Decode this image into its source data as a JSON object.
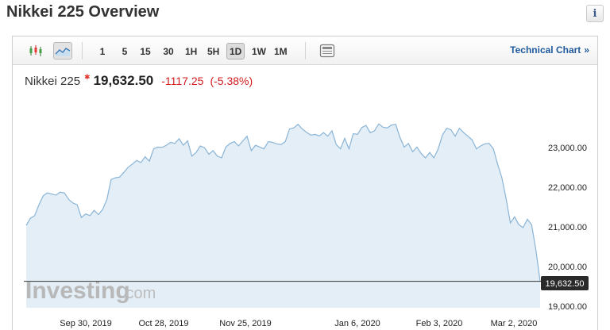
{
  "page": {
    "title": "Nikkei 225 Overview",
    "info_icon": "info-icon"
  },
  "toolbar": {
    "icons": [
      "candlestick-icon",
      "area-chart-icon"
    ],
    "timeframes": [
      "1",
      "5",
      "15",
      "30",
      "1H",
      "5H",
      "1D",
      "1W",
      "1M"
    ],
    "active_timeframe": "1D",
    "layout_icon": "layout-icon",
    "technical_chart_label": "Technical Chart",
    "technical_chart_chevron": "»"
  },
  "quote": {
    "name": "Nikkei 225",
    "price": "19,632.50",
    "change": "-1117.25",
    "change_pct": "(-5.38%)",
    "down_color": "#d01c1f"
  },
  "watermark": {
    "text": "Investing",
    "suffix": ".com"
  },
  "colors": {
    "line": "#8ab4d6",
    "fill": "#e3eef6",
    "current_line": "#333333",
    "price_tag_bg": "#2a2a2a"
  },
  "chart_data": {
    "type": "area",
    "x_labels": [
      "Sep 30, 2019",
      "Oct 28, 2019",
      "Nov 25, 2019",
      "Jan 6, 2020",
      "Feb 3, 2020",
      "Mar 2, 2020"
    ],
    "y_ticks": [
      "23,000.00",
      "22,000.00",
      "21,000.00",
      "20,000.00",
      "19,000.00"
    ],
    "ylim": [
      18900,
      24500
    ],
    "current_value_label": "19,632.50",
    "current_value": 19632.5,
    "grid": false,
    "values": [
      21180,
      21380,
      21450,
      21750,
      22000,
      22080,
      22050,
      22020,
      22100,
      22080,
      21900,
      21800,
      21750,
      21400,
      21500,
      21450,
      21600,
      21480,
      21620,
      21900,
      22450,
      22500,
      22520,
      22650,
      22790,
      22880,
      22980,
      22920,
      23080,
      22960,
      23300,
      23350,
      23340,
      23400,
      23480,
      23450,
      23580,
      23400,
      23520,
      23100,
      23200,
      23380,
      23330,
      23150,
      23250,
      23100,
      23050,
      23350,
      23450,
      23500,
      23380,
      23520,
      23650,
      23250,
      23400,
      23350,
      23300,
      23500,
      23480,
      23440,
      23420,
      23500,
      23850,
      23880,
      23980,
      23850,
      23760,
      23680,
      23700,
      23660,
      23750,
      23650,
      23800,
      23420,
      23300,
      23590,
      23300,
      23720,
      23700,
      23890,
      23950,
      23750,
      23800,
      23990,
      23900,
      23880,
      23960,
      23980,
      23620,
      23350,
      23450,
      23220,
      23350,
      23170,
      23050,
      23200,
      23050,
      23300,
      23680,
      23870,
      23830,
      23650,
      23870,
      23750,
      23650,
      23550,
      23300,
      23380,
      23440,
      23450,
      23300,
      22880,
      22500,
      21920,
      21250,
      21420,
      21200,
      21120,
      21350,
      21200,
      20500,
      19632.5
    ]
  }
}
